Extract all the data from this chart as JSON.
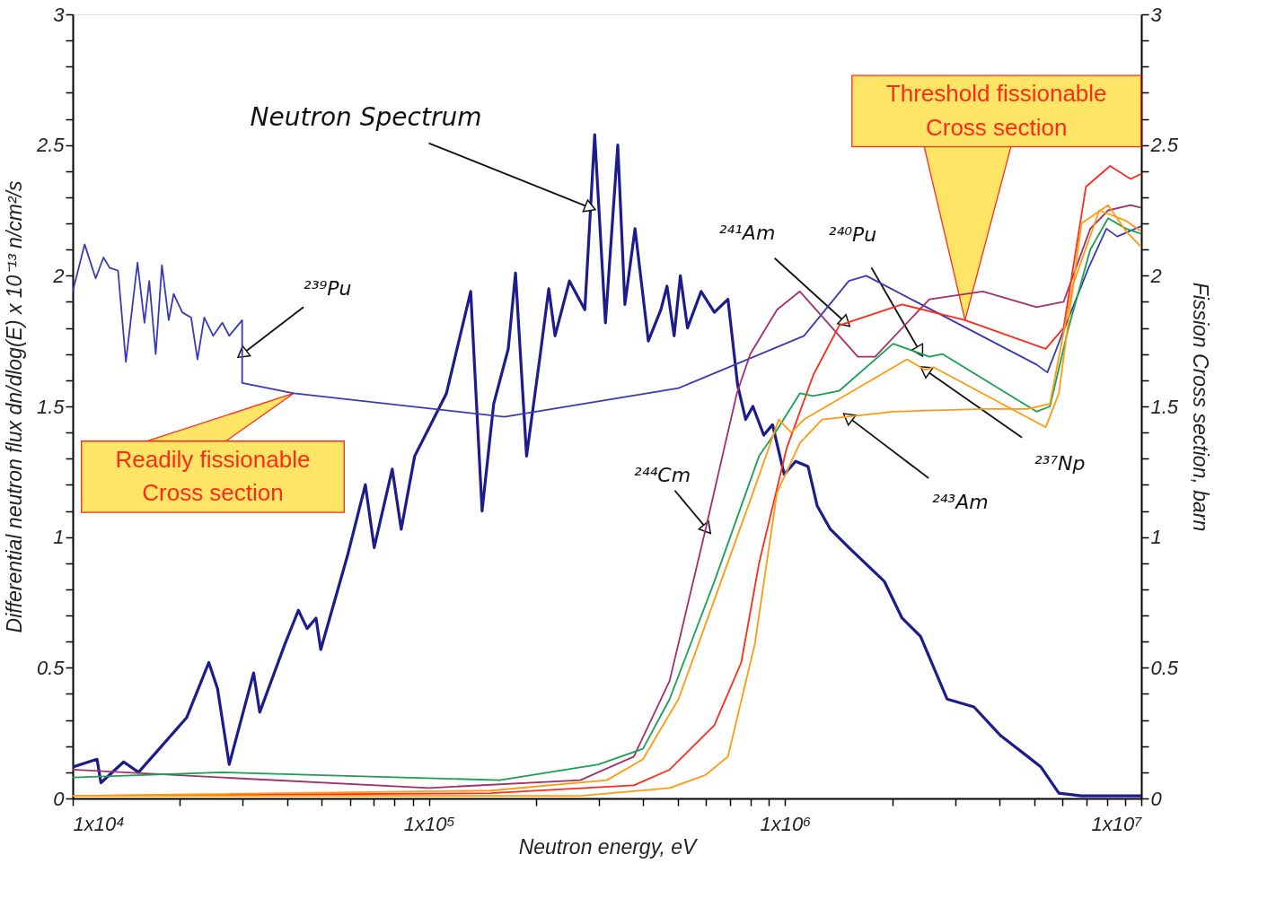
{
  "chart_data": {
    "type": "line",
    "log": "x",
    "xlabel": "Neutron energy, eV",
    "ylabel": "Differential neutron flux dn/dlog(E) x 10⁻¹³ n/cm²/s",
    "y2label": "Fission Cross section, barn",
    "xlim": [
      10000,
      10000000
    ],
    "xticks": [
      {
        "value": 10000,
        "label": "1x10⁴"
      },
      {
        "value": 20000,
        "label": null
      },
      {
        "value": 30000,
        "label": null
      },
      {
        "value": 40000,
        "label": null
      },
      {
        "value": 50000,
        "label": null
      },
      {
        "value": 60000,
        "label": null
      },
      {
        "value": 70000,
        "label": null
      },
      {
        "value": 80000,
        "label": null
      },
      {
        "value": 90000,
        "label": null
      },
      {
        "value": 100000,
        "label": "1x10⁵"
      },
      {
        "value": 200000,
        "label": null
      },
      {
        "value": 300000,
        "label": null
      },
      {
        "value": 400000,
        "label": null
      },
      {
        "value": 500000,
        "label": null
      },
      {
        "value": 600000,
        "label": null
      },
      {
        "value": 700000,
        "label": null
      },
      {
        "value": 800000,
        "label": null
      },
      {
        "value": 900000,
        "label": null
      },
      {
        "value": 1000000,
        "label": "1x10⁶"
      },
      {
        "value": 2000000,
        "label": null
      },
      {
        "value": 3000000,
        "label": null
      },
      {
        "value": 4000000,
        "label": null
      },
      {
        "value": 5000000,
        "label": null
      },
      {
        "value": 6000000,
        "label": null
      },
      {
        "value": 7000000,
        "label": null
      },
      {
        "value": 8000000,
        "label": null
      },
      {
        "value": 9000000,
        "label": null
      },
      {
        "value": 10000000,
        "label": "1x10⁷"
      }
    ],
    "ylim": [
      0,
      3
    ],
    "yticks": [
      0,
      {
        "value": 0.1,
        "label": null
      },
      {
        "value": 0.2,
        "label": null
      },
      {
        "value": 0.3,
        "label": null
      },
      {
        "value": 0.4,
        "label": null
      },
      0.5,
      {
        "value": 0.6,
        "label": null
      },
      {
        "value": 0.7,
        "label": null
      },
      {
        "value": 0.8,
        "label": null
      },
      {
        "value": 0.9,
        "label": null
      },
      1,
      {
        "value": 1.1,
        "label": null
      },
      {
        "value": 1.2,
        "label": null
      },
      {
        "value": 1.3,
        "label": null
      },
      {
        "value": 1.4,
        "label": null
      },
      1.5,
      {
        "value": 1.6,
        "label": null
      },
      {
        "value": 1.7,
        "label": null
      },
      {
        "value": 1.8,
        "label": null
      },
      {
        "value": 1.9,
        "label": null
      },
      2,
      {
        "value": 2.1,
        "label": null
      },
      {
        "value": 2.2,
        "label": null
      },
      {
        "value": 2.3,
        "label": null
      },
      {
        "value": 2.4,
        "label": null
      },
      2.5,
      {
        "value": 2.6,
        "label": null
      },
      {
        "value": 2.7,
        "label": null
      },
      {
        "value": 2.8,
        "label": null
      },
      {
        "value": 2.9,
        "label": null
      },
      3
    ],
    "y2lim": [
      0,
      3
    ],
    "y2ticks": [
      0,
      {
        "value": 0.1,
        "label": null
      },
      {
        "value": 0.2,
        "label": null
      },
      {
        "value": 0.3,
        "label": null
      },
      {
        "value": 0.4,
        "label": null
      },
      0.5,
      {
        "value": 0.6,
        "label": null
      },
      {
        "value": 0.7,
        "label": null
      },
      {
        "value": 0.8,
        "label": null
      },
      {
        "value": 0.9,
        "label": null
      },
      1,
      {
        "value": 1.1,
        "label": null
      },
      {
        "value": 1.2,
        "label": null
      },
      {
        "value": 1.3,
        "label": null
      },
      {
        "value": 1.4,
        "label": null
      },
      1.5,
      {
        "value": 1.6,
        "label": null
      },
      {
        "value": 1.7,
        "label": null
      },
      {
        "value": 1.8,
        "label": null
      },
      {
        "value": 1.9,
        "label": null
      },
      2,
      {
        "value": 2.1,
        "label": null
      },
      {
        "value": 2.2,
        "label": null
      },
      {
        "value": 2.3,
        "label": null
      },
      {
        "value": 2.4,
        "label": null
      },
      2.5,
      {
        "value": 2.6,
        "label": null
      },
      {
        "value": 2.7,
        "label": null
      },
      {
        "value": 2.8,
        "label": null
      },
      {
        "value": 2.9,
        "label": null
      },
      3
    ],
    "series": [
      {
        "color": "#1c1c8c",
        "axis": "y",
        "x": [
          10000,
          11700,
          12000,
          13900,
          15300,
          17500,
          20900,
          24100,
          25500,
          27500,
          32200,
          33500,
          39400,
          43000,
          45500,
          48200,
          49700,
          59100,
          66300,
          70200,
          78900,
          83600,
          91200,
          99400,
          112000,
          131000,
          141000,
          152000,
          167000,
          175000,
          188000,
          205000,
          217000,
          226000,
          248000,
          274000,
          292000,
          313000,
          339000,
          355000,
          379000,
          413000,
          448000,
          466000,
          488000,
          508000,
          532000,
          581000,
          633000,
          691000,
          736000,
          775000,
          812000,
          871000,
          922000,
          994000,
          1070000,
          1160000,
          1230000,
          1340000,
          1510000,
          1900000,
          2130000,
          2400000,
          2850000,
          3390000,
          4030000,
          4800000,
          5230000,
          5870000,
          6790000,
          10000000
        ],
        "values": [
          0.12,
          0.15,
          0.06,
          0.14,
          0.1,
          0.19,
          0.31,
          0.52,
          0.42,
          0.13,
          0.48,
          0.33,
          0.59,
          0.72,
          0.65,
          0.69,
          0.57,
          0.93,
          1.2,
          0.96,
          1.26,
          1.03,
          1.31,
          1.41,
          1.55,
          1.94,
          1.1,
          1.51,
          1.72,
          2.01,
          1.31,
          1.69,
          1.95,
          1.77,
          1.98,
          1.87,
          2.54,
          1.82,
          2.5,
          1.89,
          2.18,
          1.75,
          1.87,
          1.96,
          1.77,
          2.0,
          1.8,
          1.94,
          1.86,
          1.91,
          1.58,
          1.45,
          1.5,
          1.39,
          1.43,
          1.24,
          1.29,
          1.27,
          1.12,
          1.03,
          0.96,
          0.83,
          0.69,
          0.62,
          0.38,
          0.35,
          0.24,
          0.16,
          0.12,
          0.02,
          0.01,
          0.01
        ]
      },
      {
        "color": "#3a3ab4",
        "axis": "y2",
        "x": [
          10000,
          10800,
          11600,
          12200,
          12700,
          13400,
          14100,
          15200,
          15900,
          16400,
          17100,
          17800,
          18600,
          19200,
          20300,
          21500,
          22400,
          23400,
          24800,
          26300,
          27500,
          29900,
          29900,
          41700,
          163000,
          502000,
          1130000,
          1510000,
          1690000,
          5080000,
          5450000,
          6050000,
          7110000,
          7980000,
          8560000,
          10000000
        ],
        "values": [
          1.94,
          2.12,
          1.99,
          2.07,
          2.03,
          2.02,
          1.67,
          2.05,
          1.82,
          1.98,
          1.7,
          2.04,
          1.83,
          1.93,
          1.86,
          1.84,
          1.68,
          1.84,
          1.77,
          1.82,
          1.77,
          1.83,
          1.59,
          1.55,
          1.46,
          1.57,
          1.77,
          1.98,
          2.0,
          1.66,
          1.63,
          1.79,
          2.03,
          2.18,
          2.15,
          2.19
        ]
      },
      {
        "color": "#a3306c",
        "axis": "y2",
        "x": [
          10000,
          26300,
          100000,
          266000,
          376000,
          474000,
          598000,
          732000,
          798000,
          949000,
          1100000,
          1600000,
          1790000,
          2540000,
          3590000,
          5080000,
          6050000,
          7190000,
          8070000,
          9330000,
          10000000
        ],
        "values": [
          0.11,
          0.08,
          0.04,
          0.07,
          0.16,
          0.45,
          1.03,
          1.55,
          1.7,
          1.87,
          1.94,
          1.69,
          1.69,
          1.91,
          1.94,
          1.88,
          1.9,
          2.18,
          2.25,
          2.27,
          2.26
        ]
      },
      {
        "color": "#ff2a1a",
        "axis": "y2",
        "x": [
          10000,
          149000,
          376000,
          474000,
          633000,
          753000,
          845000,
          1010000,
          1200000,
          1420000,
          2130000,
          3200000,
          5390000,
          6050000,
          6990000,
          8170000,
          9330000,
          10000000
        ],
        "values": [
          0.01,
          0.02,
          0.05,
          0.11,
          0.28,
          0.52,
          0.9,
          1.34,
          1.62,
          1.81,
          1.89,
          1.83,
          1.72,
          1.8,
          2.34,
          2.42,
          2.37,
          2.39
        ]
      },
      {
        "color": "#1aa050",
        "axis": "y2",
        "x": [
          10000,
          26300,
          158000,
          299000,
          399000,
          474000,
          633000,
          845000,
          949000,
          1100000,
          1200000,
          1420000,
          2010000,
          2540000,
          2770000,
          5080000,
          5540000,
          6220000,
          7190000,
          8070000,
          9060000,
          10000000
        ],
        "values": [
          0.08,
          0.1,
          0.07,
          0.13,
          0.19,
          0.38,
          0.83,
          1.31,
          1.41,
          1.55,
          1.54,
          1.56,
          1.74,
          1.69,
          1.7,
          1.48,
          1.5,
          1.79,
          2.1,
          2.22,
          2.18,
          2.16
        ]
      },
      {
        "color": "#ff9a10",
        "axis": "y2",
        "x": [
          10000,
          149000,
          316000,
          399000,
          502000,
          633000,
          798000,
          960000,
          1040000,
          1130000,
          2200000,
          2470000,
          2610000,
          5390000,
          5870000,
          6790000,
          8070000,
          9060000,
          10000000
        ],
        "values": [
          0.01,
          0.03,
          0.07,
          0.15,
          0.38,
          0.76,
          1.14,
          1.45,
          1.4,
          1.45,
          1.68,
          1.64,
          1.65,
          1.42,
          1.55,
          2.2,
          2.27,
          2.17,
          2.11
        ]
      },
      {
        "color": "#ff9a10",
        "axis": "y2",
        "x": [
          10000,
          266000,
          474000,
          598000,
          691000,
          822000,
          949000,
          1100000,
          1270000,
          2010000,
          3590000,
          4800000,
          5540000,
          6410000,
          7620000,
          9060000,
          10000000
        ],
        "values": [
          0.01,
          0.01,
          0.04,
          0.09,
          0.16,
          0.59,
          1.17,
          1.36,
          1.45,
          1.48,
          1.49,
          1.49,
          1.51,
          1.96,
          2.25,
          2.21,
          2.17
        ]
      }
    ],
    "annotations": [
      {
        "text": "Neutron Spectrum",
        "x": 284000,
        "y": 2.26
      },
      {
        "text": "²³⁹Pu",
        "x": 29900,
        "y": 1.7
      },
      {
        "text": "²⁴¹Am",
        "x": 1480000,
        "y": 1.82
      },
      {
        "text": "²⁴⁰Pu",
        "x": 2390000,
        "y": 1.71
      },
      {
        "text": "²³⁷Np",
        "x": 2470000,
        "y": 1.64
      },
      {
        "text": "²⁴³Am",
        "x": 1500000,
        "y": 1.46
      },
      {
        "text": "²⁴⁴Cm",
        "x": 604000,
        "y": 1.03
      },
      {
        "text": "Readily fissionable\nCross section",
        "x": 41700,
        "y": 1.55
      },
      {
        "text": "Threshold fissionable\nCross section",
        "x": 3200000,
        "y": 1.83
      }
    ]
  }
}
